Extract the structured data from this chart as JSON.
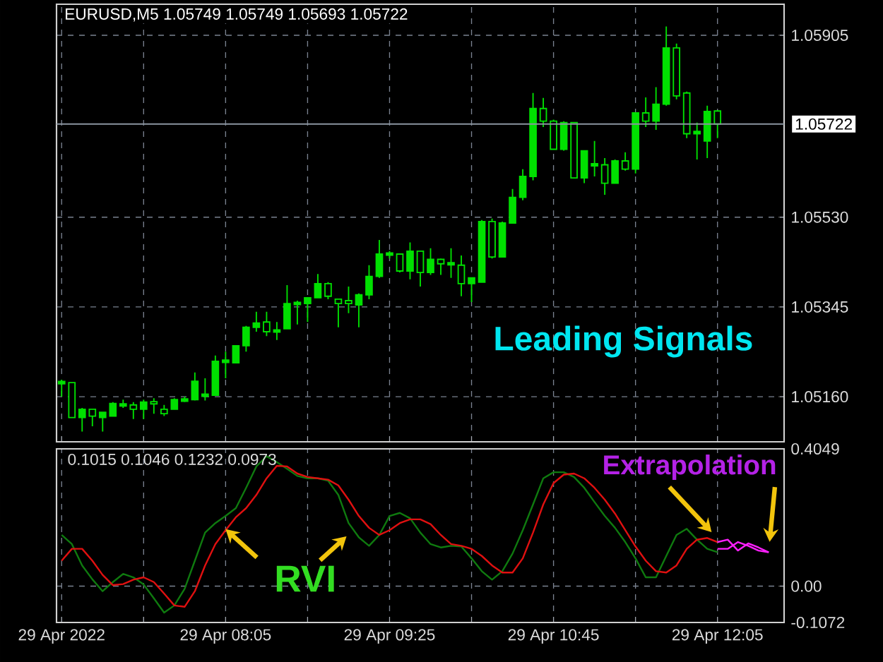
{
  "chart_data": [
    {
      "type": "candlestick",
      "title": "EURUSD,M5  1.05749 1.05749 1.05693 1.05722",
      "color": "#00e000",
      "categories": [
        null,
        null,
        null,
        null,
        null,
        null,
        null,
        null,
        null,
        null,
        null,
        null,
        null,
        null,
        null,
        null,
        null,
        null,
        null,
        null,
        null,
        null,
        null,
        null,
        null,
        null,
        null,
        null,
        null,
        null,
        null,
        null,
        null,
        null,
        null,
        null,
        null,
        null,
        null,
        null,
        null,
        null,
        null,
        null,
        null,
        null,
        null,
        null,
        null,
        null,
        null,
        null,
        null,
        null,
        null,
        null,
        null,
        null,
        null,
        null,
        null,
        null,
        null,
        null,
        null,
        null,
        null,
        null,
        null,
        null,
        null
      ],
      "ohlc": [
        [
          1.05189,
          1.05195,
          1.0516,
          1.05189
        ],
        [
          1.05189,
          1.05189,
          1.05117,
          1.05117
        ],
        [
          1.05117,
          1.05137,
          1.05088,
          1.05134
        ],
        [
          1.05134,
          1.05134,
          1.05099,
          1.0512
        ],
        [
          1.05117,
          1.05128,
          1.05088,
          1.05128
        ],
        [
          1.0512,
          1.05149,
          1.0512,
          1.05146
        ],
        [
          1.05143,
          1.05154,
          1.05137,
          1.05143
        ],
        [
          1.05143,
          1.05149,
          1.05114,
          1.05134
        ],
        [
          1.05134,
          1.05154,
          1.05114,
          1.05149
        ],
        [
          1.05149,
          1.05157,
          1.05125,
          1.05146
        ],
        [
          1.05134,
          1.05143,
          1.0512,
          1.05125
        ],
        [
          1.05134,
          1.05157,
          1.05134,
          1.05154
        ],
        [
          1.05152,
          1.0516,
          1.05149,
          1.05154
        ],
        [
          1.05154,
          1.0521,
          1.05152,
          1.05192
        ],
        [
          1.05163,
          1.05198,
          1.05152,
          1.05163
        ],
        [
          1.05163,
          1.05245,
          1.05163,
          1.05233
        ],
        [
          1.05233,
          1.05253,
          1.05198,
          1.05233
        ],
        [
          1.0523,
          1.05265,
          1.0523,
          1.05265
        ],
        [
          1.05265,
          1.05306,
          1.05253,
          1.05303
        ],
        [
          1.05303,
          1.05335,
          1.05294,
          1.05312
        ],
        [
          1.05314,
          1.05335,
          1.05285,
          1.05294
        ],
        [
          1.05294,
          1.05314,
          1.05277,
          1.05297
        ],
        [
          1.053,
          1.0539,
          1.053,
          1.05352
        ],
        [
          1.05352,
          1.05358,
          1.05309,
          1.05352
        ],
        [
          1.05352,
          1.05364,
          1.05314,
          1.05364
        ],
        [
          1.05364,
          1.05413,
          1.05364,
          1.05393
        ],
        [
          1.05393,
          1.05396,
          1.05361,
          1.05367
        ],
        [
          1.05361,
          1.05361,
          1.05303,
          1.05352
        ],
        [
          1.05358,
          1.05387,
          1.05332,
          1.05352
        ],
        [
          1.05349,
          1.05373,
          1.05303,
          1.0537
        ],
        [
          1.0537,
          1.05431,
          1.05361,
          1.05408
        ],
        [
          1.05408,
          1.05483,
          1.05405,
          1.05454
        ],
        [
          1.05454,
          1.0546,
          1.05445,
          1.05454
        ],
        [
          1.05454,
          1.05454,
          1.05416,
          1.05419
        ],
        [
          1.05419,
          1.05478,
          1.05402,
          1.0546
        ],
        [
          1.0546,
          1.0546,
          1.05387,
          1.05416
        ],
        [
          1.05416,
          1.05466,
          1.05411,
          1.05443
        ],
        [
          1.05443,
          1.05445,
          1.05411,
          1.05434
        ],
        [
          1.05434,
          1.05466,
          1.05405,
          1.05434
        ],
        [
          1.05431,
          1.05451,
          1.05367,
          1.05393
        ],
        [
          1.05393,
          1.05405,
          1.05355,
          1.05405
        ],
        [
          1.05396,
          1.05524,
          1.05396,
          1.05521
        ],
        [
          1.05521,
          1.05527,
          1.05445,
          1.05448
        ],
        [
          1.05448,
          1.05521,
          1.05448,
          1.05518
        ],
        [
          1.05518,
          1.05588,
          1.05518,
          1.05571
        ],
        [
          1.05571,
          1.05629,
          1.05565,
          1.05614
        ],
        [
          1.05614,
          1.05786,
          1.05606,
          1.05754
        ],
        [
          1.05754,
          1.05776,
          1.05716,
          1.05728
        ],
        [
          1.05728,
          1.05731,
          1.0567,
          1.0567
        ],
        [
          1.0567,
          1.05728,
          1.05667,
          1.05725
        ],
        [
          1.05725,
          1.05725,
          1.05611,
          1.05611
        ],
        [
          1.05611,
          1.05667,
          1.056,
          1.05667
        ],
        [
          1.05638,
          1.05687,
          1.05614,
          1.05638
        ],
        [
          1.05638,
          1.05652,
          1.05576,
          1.056
        ],
        [
          1.056,
          1.05649,
          1.056,
          1.05646
        ],
        [
          1.05646,
          1.05664,
          1.05626,
          1.05629
        ],
        [
          1.05629,
          1.05745,
          1.0562,
          1.05745
        ],
        [
          1.05745,
          1.05777,
          1.05716,
          1.05728
        ],
        [
          1.05728,
          1.05798,
          1.0571,
          1.05763
        ],
        [
          1.05763,
          1.05923,
          1.0576,
          1.05879
        ],
        [
          1.05879,
          1.05888,
          1.05773,
          1.0578
        ],
        [
          1.05786,
          1.05789,
          1.05693,
          1.05702
        ],
        [
          1.05702,
          1.05725,
          1.05649,
          1.05707
        ],
        [
          1.05687,
          1.0576,
          1.05652,
          1.05748
        ],
        [
          1.05749,
          1.05749,
          1.05693,
          1.05722
        ],
        null,
        null,
        null,
        null,
        null,
        null
      ],
      "ylim": [
        1.05067,
        1.05969
      ],
      "yticks": [
        {
          "value": 1.0516,
          "label": "1.05160"
        },
        1.05345,
        {
          "value": 1.0553,
          "label": "1.05530"
        },
        1.05905
      ],
      "grid": true,
      "tick_labels": "y",
      "ref_lines": [
        {
          "axis": "y",
          "value": 1.05722,
          "label": "1.05722",
          "color": "#8a94a0",
          "line_style": "solid"
        }
      ],
      "annotations": [
        "Leading Signals"
      ]
    },
    {
      "type": "line",
      "categories": [
        "29 Apr 2022",
        null,
        null,
        null,
        null,
        null,
        null,
        null,
        null,
        null,
        null,
        null,
        null,
        null,
        null,
        null,
        "29 Apr 08:05",
        null,
        null,
        null,
        null,
        null,
        null,
        null,
        null,
        null,
        null,
        null,
        null,
        null,
        null,
        null,
        "29 Apr 09:25",
        null,
        null,
        null,
        null,
        null,
        null,
        null,
        null,
        null,
        null,
        null,
        null,
        null,
        null,
        null,
        "29 Apr 10:45",
        null,
        null,
        null,
        null,
        null,
        null,
        null,
        null,
        null,
        null,
        null,
        null,
        null,
        null,
        null,
        "29 Apr 12:05",
        null,
        null,
        null,
        null,
        null,
        null
      ],
      "series": [
        {
          "color": "#0f7a0f",
          "values": [
            0.151,
            0.124,
            0.061,
            0.02,
            -0.015,
            0.012,
            0.036,
            0.026,
            0.005,
            -0.036,
            -0.078,
            -0.057,
            -0.008,
            0.075,
            0.158,
            0.186,
            0.207,
            0.23,
            0.29,
            0.353,
            0.383,
            0.366,
            0.346,
            0.325,
            0.318,
            0.318,
            0.311,
            0.269,
            0.186,
            0.144,
            0.119,
            0.151,
            0.207,
            0.216,
            0.2,
            0.158,
            0.124,
            0.114,
            0.119,
            0.117,
            0.082,
            0.044,
            0.019,
            0.044,
            0.096,
            0.165,
            0.241,
            0.318,
            0.336,
            0.336,
            0.322,
            0.29,
            0.248,
            0.207,
            0.172,
            0.13,
            0.082,
            0.026,
            0.026,
            0.089,
            0.151,
            0.169,
            0.137,
            0.11,
            0.1,
            null,
            null,
            null,
            null,
            null,
            null
          ]
        },
        {
          "color": "#e01010",
          "values": [
            0.075,
            0.11,
            0.11,
            0.075,
            0.033,
            0.003,
            0.006,
            0.019,
            0.026,
            0.012,
            -0.022,
            -0.057,
            -0.061,
            -0.015,
            0.061,
            0.124,
            0.165,
            0.203,
            0.23,
            0.269,
            0.318,
            0.355,
            0.353,
            0.332,
            0.322,
            0.318,
            0.314,
            0.297,
            0.255,
            0.207,
            0.172,
            0.151,
            0.165,
            0.186,
            0.197,
            0.197,
            0.183,
            0.151,
            0.124,
            0.119,
            0.11,
            0.089,
            0.061,
            0.04,
            0.04,
            0.082,
            0.158,
            0.241,
            0.304,
            0.329,
            0.332,
            0.318,
            0.29,
            0.255,
            0.214,
            0.165,
            0.117,
            0.075,
            0.044,
            0.04,
            0.061,
            0.11,
            0.137,
            0.142,
            0.13,
            null,
            null,
            null,
            null,
            null,
            null
          ]
        },
        {
          "color": "#ff20ff",
          "values": [
            null,
            null,
            null,
            null,
            null,
            null,
            null,
            null,
            null,
            null,
            null,
            null,
            null,
            null,
            null,
            null,
            null,
            null,
            null,
            null,
            null,
            null,
            null,
            null,
            null,
            null,
            null,
            null,
            null,
            null,
            null,
            null,
            null,
            null,
            null,
            null,
            null,
            null,
            null,
            null,
            null,
            null,
            null,
            null,
            null,
            null,
            null,
            null,
            null,
            null,
            null,
            null,
            null,
            null,
            null,
            null,
            null,
            null,
            null,
            null,
            null,
            null,
            null,
            null,
            0.13,
            0.137,
            0.105,
            0.126,
            0.114,
            0.1,
            null
          ]
        },
        {
          "color": "#ff20ff",
          "values": [
            null,
            null,
            null,
            null,
            null,
            null,
            null,
            null,
            null,
            null,
            null,
            null,
            null,
            null,
            null,
            null,
            null,
            null,
            null,
            null,
            null,
            null,
            null,
            null,
            null,
            null,
            null,
            null,
            null,
            null,
            null,
            null,
            null,
            null,
            null,
            null,
            null,
            null,
            null,
            null,
            null,
            null,
            null,
            null,
            null,
            null,
            null,
            null,
            null,
            null,
            null,
            null,
            null,
            null,
            null,
            null,
            null,
            null,
            null,
            null,
            null,
            null,
            null,
            null,
            0.11,
            0.11,
            0.13,
            0.119,
            0.105,
            0.1,
            null
          ]
        }
      ],
      "ylim": [
        -0.1072,
        0.4049
      ],
      "yticks": [
        0.4049,
        {
          "value": 0,
          "label": "0.00"
        },
        -0.1072
      ],
      "grid": true,
      "annotations": [
        "0.1015 0.1046 0.1232 0.0973",
        {
          "text": "RVI",
          "x": "29 Apr 08:05",
          "y": 0.168
        },
        {
          "text": "Extrapolation",
          "y": 0.1
        }
      ]
    }
  ]
}
